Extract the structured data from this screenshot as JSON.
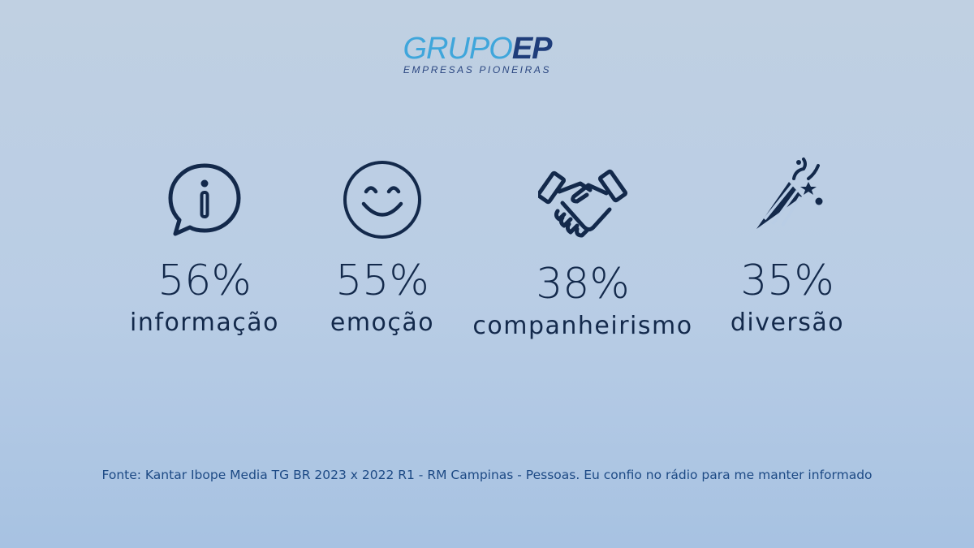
{
  "logo": {
    "word_light": "GRUPO",
    "word_bold": "EP",
    "tagline": "EMPRESAS PIONEIRAS"
  },
  "stats": [
    {
      "icon": "info-chat-bubble-icon",
      "percent": "56%",
      "label": "informação"
    },
    {
      "icon": "smiley-face-icon",
      "percent": "55%",
      "label": "emoção"
    },
    {
      "icon": "handshake-icon",
      "percent": "38%",
      "label": "companheirismo"
    },
    {
      "icon": "party-popper-icon",
      "percent": "35%",
      "label": "diversão"
    }
  ],
  "source": "Fonte: Kantar Ibope Media TG BR 2023 x 2022 R1 - RM Campinas - Pessoas. Eu confio no rádio para me manter informado",
  "colors": {
    "text": "#13294b",
    "logo_light": "#3fa6db",
    "logo_dark": "#1f3d7a",
    "source_text": "#1d4a85",
    "background_top": "#c0d0e2",
    "background_bottom": "#a7c2e2"
  }
}
